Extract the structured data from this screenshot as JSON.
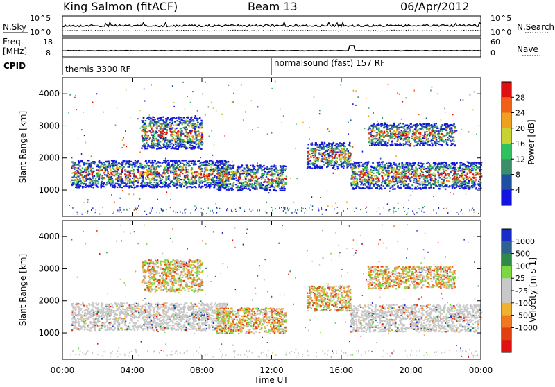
{
  "header": {
    "station": "King Salmon (fitACF)",
    "beam": "Beam 13",
    "date": "06/Apr/2012"
  },
  "noise_panel": {
    "left_label": "N.Sky",
    "right_label": "N.Search",
    "left_ticks": [
      "10^5",
      "10^0"
    ],
    "right_ticks": [
      "10^5",
      "10^0"
    ]
  },
  "freq_panel": {
    "left_label_1": "Freq.",
    "left_label_2": "[MHz]",
    "right_label": "Nave",
    "left_ticks": [
      "18",
      "8"
    ],
    "right_ticks": [
      "60",
      "0"
    ]
  },
  "cpid_panel": {
    "label": "CPID",
    "segments": [
      {
        "text": "themis 3300 RF",
        "start_hour": 0
      },
      {
        "text": "normalsound (fast) 157 RF",
        "start_hour": 12
      }
    ]
  },
  "chart_data": [
    {
      "type": "heatmap",
      "title": "Power",
      "ylabel": "Slant Range [km]",
      "xlabel": "Time UT",
      "xlim": [
        0,
        24
      ],
      "ylim": [
        180,
        4500
      ],
      "y_ticks": [
        1000,
        2000,
        3000,
        4000
      ],
      "x_ticks": [
        "00:00",
        "04:00",
        "08:00",
        "12:00",
        "16:00",
        "20:00",
        "00:00"
      ],
      "colorbar_label": "Power [dB]",
      "colorbar_ticks": [
        "4",
        "8",
        "12",
        "16",
        "20",
        "24",
        "28"
      ],
      "colors": [
        "#1414e0",
        "#1f4fa0",
        "#3a8f6a",
        "#2fc060",
        "#c8d230",
        "#f0a020",
        "#f06018",
        "#e01010"
      ],
      "echo_regions": [
        {
          "t_start": 0.5,
          "t_end": 9.5,
          "range_low": 1100,
          "range_high": 1950
        },
        {
          "t_start": 8.8,
          "t_end": 12.8,
          "range_low": 1000,
          "range_high": 1800
        },
        {
          "t_start": 4.5,
          "t_end": 8.0,
          "range_low": 2300,
          "range_high": 3300
        },
        {
          "t_start": 14.0,
          "t_end": 16.5,
          "range_low": 1700,
          "range_high": 2500
        },
        {
          "t_start": 16.5,
          "t_end": 24.0,
          "range_low": 1050,
          "range_high": 1900
        },
        {
          "t_start": 17.5,
          "t_end": 22.5,
          "range_low": 2400,
          "range_high": 3100
        }
      ]
    },
    {
      "type": "heatmap",
      "title": "Velocity",
      "ylabel": "Slant Range [km]",
      "xlabel": "Time UT",
      "xlim": [
        0,
        24
      ],
      "ylim": [
        180,
        4500
      ],
      "y_ticks": [
        1000,
        2000,
        3000,
        4000
      ],
      "x_ticks": [
        "00:00",
        "04:00",
        "08:00",
        "12:00",
        "16:00",
        "20:00",
        "00:00"
      ],
      "colorbar_label": "Velocity [m s-1]",
      "colorbar_ticks": [
        "1000",
        "500",
        "100",
        "25",
        "-25",
        "-100",
        "-500",
        "-1000"
      ],
      "colors": [
        "#1a2cc8",
        "#2f6090",
        "#2f8a4a",
        "#7cd840",
        "#c8c8c8",
        "#c8c8c8",
        "#f0b030",
        "#f07820",
        "#e04010",
        "#e01010"
      ],
      "echo_regions": [
        {
          "t_start": 0.5,
          "t_end": 9.5,
          "range_low": 1100,
          "range_high": 1950
        },
        {
          "t_start": 8.8,
          "t_end": 12.8,
          "range_low": 1000,
          "range_high": 1800
        },
        {
          "t_start": 4.5,
          "t_end": 8.0,
          "range_low": 2300,
          "range_high": 3300
        },
        {
          "t_start": 14.0,
          "t_end": 16.5,
          "range_low": 1700,
          "range_high": 2500
        },
        {
          "t_start": 16.5,
          "t_end": 24.0,
          "range_low": 1050,
          "range_high": 1900
        },
        {
          "t_start": 17.5,
          "t_end": 22.5,
          "range_low": 2400,
          "range_high": 3100
        }
      ]
    }
  ],
  "colorbar_power": {
    "label": "Power [dB]"
  },
  "colorbar_velocity": {
    "label": "Velocity [m s-1]"
  }
}
